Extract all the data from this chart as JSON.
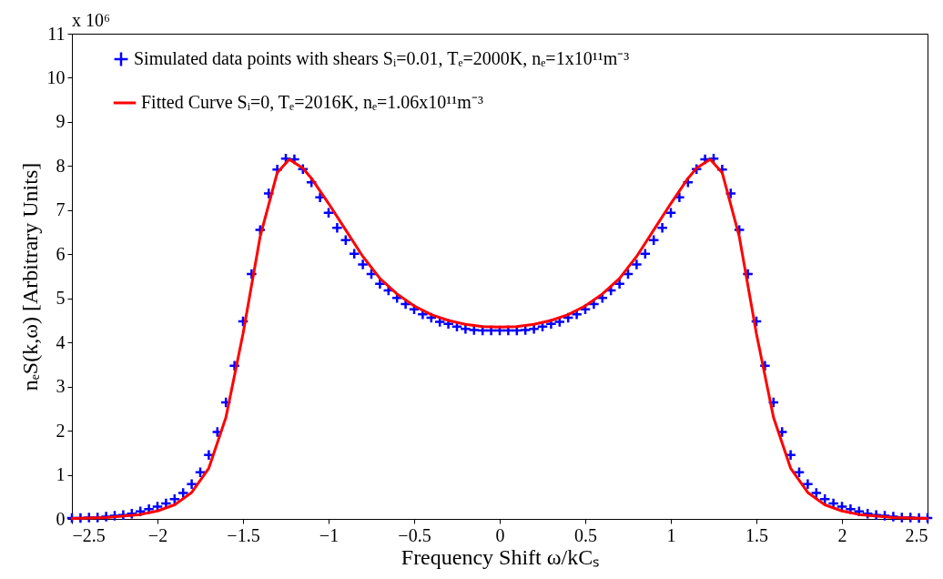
{
  "chart_data": {
    "type": "scatter",
    "xlabel": "Frequency Shift ω/kCₛ",
    "ylabel": "nₑS(k,ω) [Arbitrary Units]",
    "annotations": [
      "x 10⁶"
    ],
    "xlim": [
      -2.5,
      2.5
    ],
    "xticks": [
      -2.5,
      -2,
      -1.5,
      -1,
      -0.5,
      0,
      0.5,
      1,
      1.5,
      2,
      2.5
    ],
    "ylim": [
      0,
      11
    ],
    "yticks": [
      0,
      1,
      2,
      3,
      4,
      5,
      6,
      7,
      8,
      9,
      10,
      11
    ],
    "grid": false,
    "legend": "top left",
    "series": [
      {
        "name": "Simulated data points with shears Sᵢ=0.01, Tₑ=2000K, nₑ=1x10¹¹m⁻³",
        "type": "scatter",
        "marker": "cross",
        "color": "#0000ff",
        "x": [
          -2.5,
          -2.45,
          -2.4,
          -2.35,
          -2.3,
          -2.25,
          -2.2,
          -2.15,
          -2.1,
          -2.05,
          -2,
          -1.95,
          -1.9,
          -1.85,
          -1.8,
          -1.75,
          -1.7,
          -1.65,
          -1.6,
          -1.55,
          -1.5,
          -1.45,
          -1.4,
          -1.35,
          -1.3,
          -1.25,
          -1.2,
          -1.15,
          -1.1,
          -1.05,
          -1,
          -0.95,
          -0.9,
          -0.85,
          -0.8,
          -0.75,
          -0.7,
          -0.65,
          -0.6,
          -0.55,
          -0.5,
          -0.45,
          -0.4,
          -0.35,
          -0.3,
          -0.25,
          -0.2,
          -0.15,
          -0.1,
          -0.05,
          0,
          0.05,
          0.1,
          0.15,
          0.2,
          0.25,
          0.3,
          0.35,
          0.4,
          0.45,
          0.5,
          0.55,
          0.6,
          0.65,
          0.7,
          0.75,
          0.8,
          0.85,
          0.9,
          0.95,
          1,
          1.05,
          1.1,
          1.15,
          1.2,
          1.25,
          1.3,
          1.35,
          1.4,
          1.45,
          1.5,
          1.55,
          1.6,
          1.65,
          1.7,
          1.75,
          1.8,
          1.85,
          1.9,
          1.95,
          2,
          2.05,
          2.1,
          2.15,
          2.2,
          2.25,
          2.3,
          2.35,
          2.4,
          2.45,
          2.5
        ],
        "values": [
          0.02,
          0.02,
          0.03,
          0.03,
          0.05,
          0.07,
          0.09,
          0.12,
          0.17,
          0.22,
          0.28,
          0.35,
          0.45,
          0.59,
          0.79,
          1.06,
          1.45,
          1.97,
          2.64,
          3.47,
          4.48,
          5.55,
          6.55,
          7.38,
          7.92,
          8.17,
          8.15,
          7.93,
          7.63,
          7.29,
          6.94,
          6.6,
          6.32,
          6.01,
          5.77,
          5.55,
          5.33,
          5.18,
          5.01,
          4.87,
          4.75,
          4.64,
          4.56,
          4.47,
          4.42,
          4.36,
          4.31,
          4.28,
          4.27,
          4.27,
          4.27,
          4.27,
          4.27,
          4.28,
          4.31,
          4.36,
          4.42,
          4.47,
          4.56,
          4.64,
          4.75,
          4.87,
          5.01,
          5.18,
          5.33,
          5.55,
          5.77,
          6.01,
          6.32,
          6.6,
          6.94,
          7.29,
          7.63,
          7.93,
          8.15,
          8.17,
          7.92,
          7.38,
          6.55,
          5.55,
          4.48,
          3.47,
          2.64,
          1.97,
          1.45,
          1.06,
          0.79,
          0.59,
          0.45,
          0.35,
          0.28,
          0.22,
          0.17,
          0.12,
          0.09,
          0.07,
          0.05,
          0.03,
          0.03,
          0.02,
          0.02
        ]
      },
      {
        "name": "Fitted Curve Sᵢ=0, Tₑ=2016K, nₑ=1.06x10¹¹m⁻³",
        "type": "line",
        "marker": "none",
        "line_style": "solid",
        "color": "#ff0000",
        "x": [
          -2.5,
          -2.3,
          -2.1,
          -2,
          -1.9,
          -1.8,
          -1.7,
          -1.6,
          -1.5,
          -1.4,
          -1.3,
          -1.23,
          -1.15,
          -1.1,
          -1,
          -0.9,
          -0.8,
          -0.7,
          -0.6,
          -0.5,
          -0.4,
          -0.3,
          -0.2,
          -0.1,
          0,
          0.1,
          0.2,
          0.3,
          0.4,
          0.5,
          0.6,
          0.7,
          0.8,
          0.9,
          1,
          1.1,
          1.15,
          1.23,
          1.3,
          1.4,
          1.5,
          1.6,
          1.7,
          1.8,
          1.9,
          2,
          2.1,
          2.3,
          2.5
        ],
        "values": [
          0.01,
          0.03,
          0.1,
          0.18,
          0.32,
          0.6,
          1.15,
          2.3,
          4.2,
          6.4,
          7.85,
          8.15,
          7.95,
          7.72,
          7.15,
          6.55,
          5.95,
          5.45,
          5.1,
          4.83,
          4.63,
          4.5,
          4.41,
          4.36,
          4.35,
          4.36,
          4.41,
          4.5,
          4.63,
          4.83,
          5.1,
          5.45,
          5.95,
          6.55,
          7.15,
          7.72,
          7.95,
          8.15,
          7.85,
          6.4,
          4.2,
          2.3,
          1.15,
          0.6,
          0.32,
          0.18,
          0.1,
          0.03,
          0.01
        ]
      }
    ]
  }
}
